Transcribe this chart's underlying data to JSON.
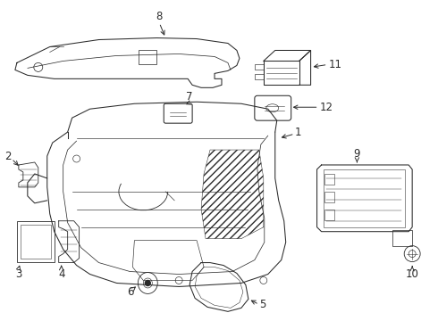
{
  "bg_color": "#ffffff",
  "line_color": "#2a2a2a",
  "arrow_color": "#2a2a2a",
  "font_size": 8.5,
  "lw": 0.75,
  "fig_w": 4.9,
  "fig_h": 3.6,
  "dpi": 100
}
